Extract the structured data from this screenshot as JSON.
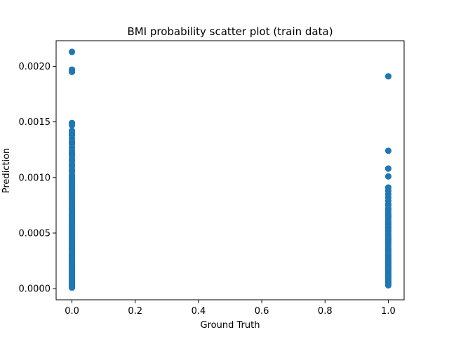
{
  "chart_data": {
    "type": "scatter",
    "title": "BMI probability scatter plot (train data)",
    "xlabel": "Ground Truth",
    "ylabel": "Prediction",
    "xlim": [
      -0.05,
      1.05
    ],
    "ylim": [
      -0.0001,
      0.00223
    ],
    "x_ticks": [
      0.0,
      0.2,
      0.4,
      0.6,
      0.8,
      1.0
    ],
    "x_tick_labels": [
      "0.0",
      "0.2",
      "0.4",
      "0.6",
      "0.8",
      "1.0"
    ],
    "y_ticks": [
      0.0,
      0.0005,
      0.001,
      0.0015,
      0.002
    ],
    "y_tick_labels": [
      "0.0000",
      "0.0005",
      "0.0010",
      "0.0015",
      "0.0020"
    ],
    "grid": false,
    "marker_color": "#1f77b4",
    "series": [
      {
        "x": [
          0,
          0,
          0,
          0,
          0,
          0,
          0,
          0,
          0,
          0,
          0,
          0,
          0,
          0,
          0,
          0,
          0,
          0,
          0,
          0,
          0,
          0,
          0,
          0,
          0,
          0,
          0,
          0,
          0,
          0,
          0,
          0,
          0,
          0,
          0,
          0,
          0,
          0,
          0,
          0,
          0,
          0,
          0,
          0,
          0,
          0,
          0,
          0,
          0,
          0,
          0,
          0,
          0,
          0,
          0,
          0,
          0,
          0,
          0,
          0,
          0,
          0,
          0,
          0,
          0,
          0,
          0,
          0,
          0,
          0,
          0,
          0,
          0,
          0,
          0,
          0,
          0,
          0,
          0,
          0,
          0,
          0,
          0,
          0,
          0,
          0,
          0,
          0,
          0,
          0,
          0,
          0,
          0,
          0,
          0,
          0,
          0,
          0,
          0,
          0,
          1,
          1,
          1,
          1,
          1,
          1,
          1,
          1,
          1,
          1,
          1,
          1,
          1,
          1,
          1,
          1,
          1,
          1,
          1,
          1,
          1,
          1,
          1,
          1,
          1,
          1,
          1,
          1,
          1,
          1,
          1,
          1,
          1,
          1,
          1,
          1,
          1,
          1,
          1,
          1,
          1,
          1,
          1,
          1,
          1,
          1,
          1,
          1,
          1,
          1,
          1,
          1,
          1,
          1,
          1,
          1,
          1,
          1,
          1,
          1,
          1,
          1,
          1,
          1,
          1,
          1,
          1,
          1,
          1
        ],
        "y": [
          0.00213,
          0.00197,
          0.00195,
          0.00149,
          0.00147,
          0.00142,
          0.0014,
          0.00138,
          0.00135,
          0.00132,
          0.0013,
          0.00127,
          0.00124,
          0.00122,
          0.0012,
          0.00117,
          0.00115,
          0.00112,
          0.0011,
          0.00107,
          0.00105,
          0.00102,
          0.001,
          0.00098,
          0.00096,
          0.00094,
          0.00092,
          0.0009,
          0.00088,
          0.00086,
          0.00084,
          0.00082,
          0.0008,
          0.00078,
          0.00076,
          0.00074,
          0.00072,
          0.0007,
          0.00068,
          0.00066,
          0.00064,
          0.00062,
          0.0006,
          0.00058,
          0.00056,
          0.00054,
          0.00052,
          0.0005,
          0.00048,
          0.00046,
          0.00044,
          0.00042,
          0.0004,
          0.00038,
          0.00036,
          0.00034,
          0.00032,
          0.0003,
          0.00029,
          0.00028,
          0.00026,
          0.00025,
          0.00024,
          0.00022,
          0.00021,
          0.0002,
          0.00019,
          0.00018,
          0.00017,
          0.00016,
          0.00015,
          0.00014,
          0.00013,
          0.00012,
          0.00011,
          0.0001,
          9e-05,
          8e-05,
          7e-05,
          6e-05,
          5e-05,
          4e-05,
          3e-05,
          2e-05,
          1e-05,
          3e-05,
          5e-05,
          7e-05,
          9e-05,
          0.00011,
          0.00013,
          0.00015,
          0.00017,
          0.00019,
          0.00021,
          0.00023,
          0.00027,
          0.00031,
          0.00035,
          0.00041,
          0.00191,
          0.00124,
          0.00108,
          0.00101,
          0.00091,
          0.00088,
          0.00085,
          0.00082,
          0.00079,
          0.00076,
          0.00072,
          0.0007,
          0.00068,
          0.00066,
          0.00064,
          0.00062,
          0.0006,
          0.00058,
          0.00056,
          0.00054,
          0.00052,
          0.0005,
          0.00048,
          0.00046,
          0.00044,
          0.00042,
          0.0004,
          0.00038,
          0.00036,
          0.00034,
          0.00032,
          0.0003,
          0.00029,
          0.00028,
          0.00027,
          0.00026,
          0.00025,
          0.00024,
          0.00023,
          0.00022,
          0.00021,
          0.0002,
          0.00019,
          0.00018,
          0.00017,
          0.00016,
          0.00015,
          0.00014,
          0.00013,
          0.00012,
          0.00011,
          0.0001,
          9e-05,
          8e-05,
          7e-05,
          6e-05,
          5e-05,
          4e-05,
          3e-05,
          0.00035,
          0.00045,
          0.00055,
          0.00065,
          0.00075,
          0.00012,
          0.00018,
          0.00024,
          0.00033,
          0.00043
        ]
      }
    ]
  }
}
